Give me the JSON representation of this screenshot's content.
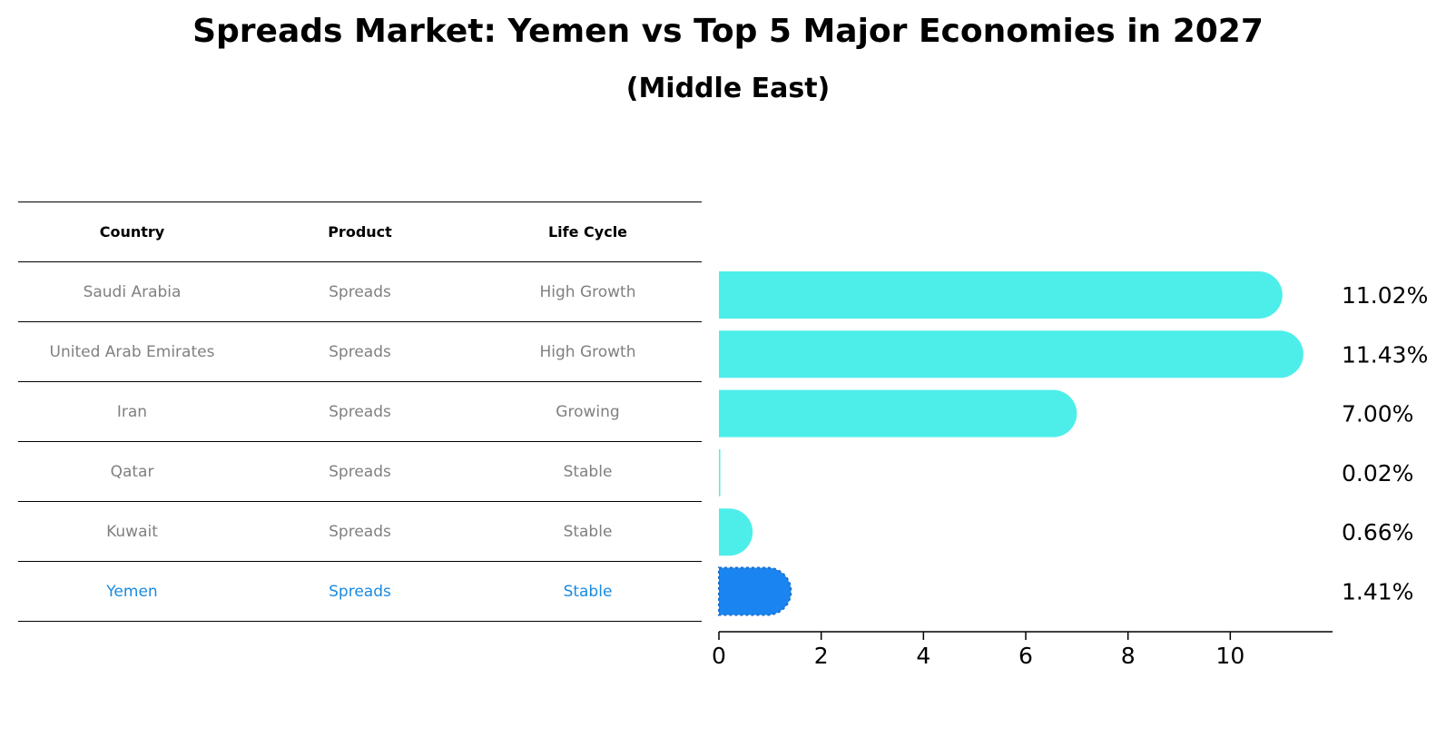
{
  "title": "Spreads Market: Yemen vs Top 5 Major Economies in 2027",
  "subtitle": "(Middle East)",
  "table": {
    "headers": [
      "Country",
      "Product",
      "Life Cycle"
    ],
    "rows": [
      [
        "Saudi Arabia",
        "Spreads",
        "High Growth"
      ],
      [
        "United Arab Emirates",
        "Spreads",
        "High Growth"
      ],
      [
        "Iran",
        "Spreads",
        "Growing"
      ],
      [
        "Qatar",
        "Spreads",
        "Stable"
      ],
      [
        "Kuwait",
        "Spreads",
        "Stable"
      ],
      [
        "Yemen",
        "Spreads",
        "Stable"
      ]
    ],
    "highlight_row": "Yemen"
  },
  "chart_data": {
    "type": "bar",
    "orientation": "horizontal",
    "categories": [
      "Saudi Arabia",
      "United Arab Emirates",
      "Iran",
      "Qatar",
      "Kuwait",
      "Yemen"
    ],
    "values": [
      11.02,
      11.43,
      7.0,
      0.02,
      0.66,
      1.41
    ],
    "labels": [
      "11.02%",
      "11.43%",
      "7.00%",
      "0.02%",
      "0.66%",
      "1.41%"
    ],
    "xlim": [
      0,
      12
    ],
    "xticks": [
      0,
      2,
      4,
      6,
      8,
      10
    ],
    "highlight": "Yemen",
    "xlabel": "",
    "ylabel": "",
    "colors": {
      "default": "#4deeea",
      "highlight": "#1a85f0"
    }
  }
}
